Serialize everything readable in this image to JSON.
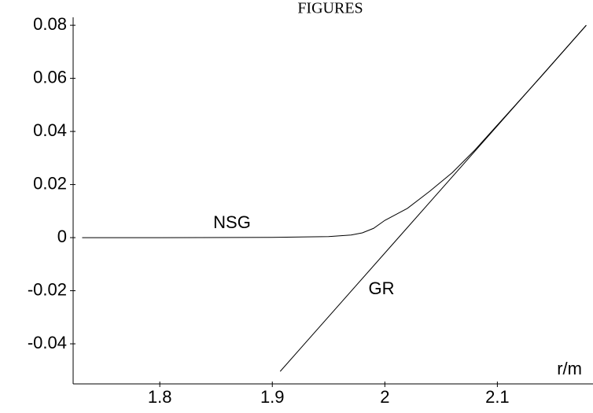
{
  "chart_data": {
    "type": "line",
    "title": "FIGURES",
    "xlabel": "r/m",
    "xlim": [
      1.723,
      2.185
    ],
    "ylim": [
      -0.0551,
      0.083
    ],
    "xticks": [
      1.8,
      1.9,
      2,
      2.1
    ],
    "yticks": [
      -0.04,
      -0.02,
      0,
      0.02,
      0.04,
      0.06,
      0.08
    ],
    "series": [
      {
        "name": "NSG",
        "color": "#000000",
        "x": [
          1.731,
          1.8,
          1.9,
          1.95,
          1.97,
          1.98,
          1.99,
          2.0,
          2.02,
          2.04,
          2.06,
          2.08,
          2.1,
          2.14,
          2.179
        ],
        "values": [
          0,
          0,
          0.0001,
          0.0004,
          0.001,
          0.0018,
          0.0035,
          0.0065,
          0.011,
          0.0175,
          0.0245,
          0.033,
          0.0424,
          0.0612,
          0.08
        ]
      },
      {
        "name": "GR",
        "color": "#000000",
        "x": [
          1.907,
          2.179
        ],
        "values": [
          -0.0504,
          0.08
        ]
      }
    ]
  }
}
